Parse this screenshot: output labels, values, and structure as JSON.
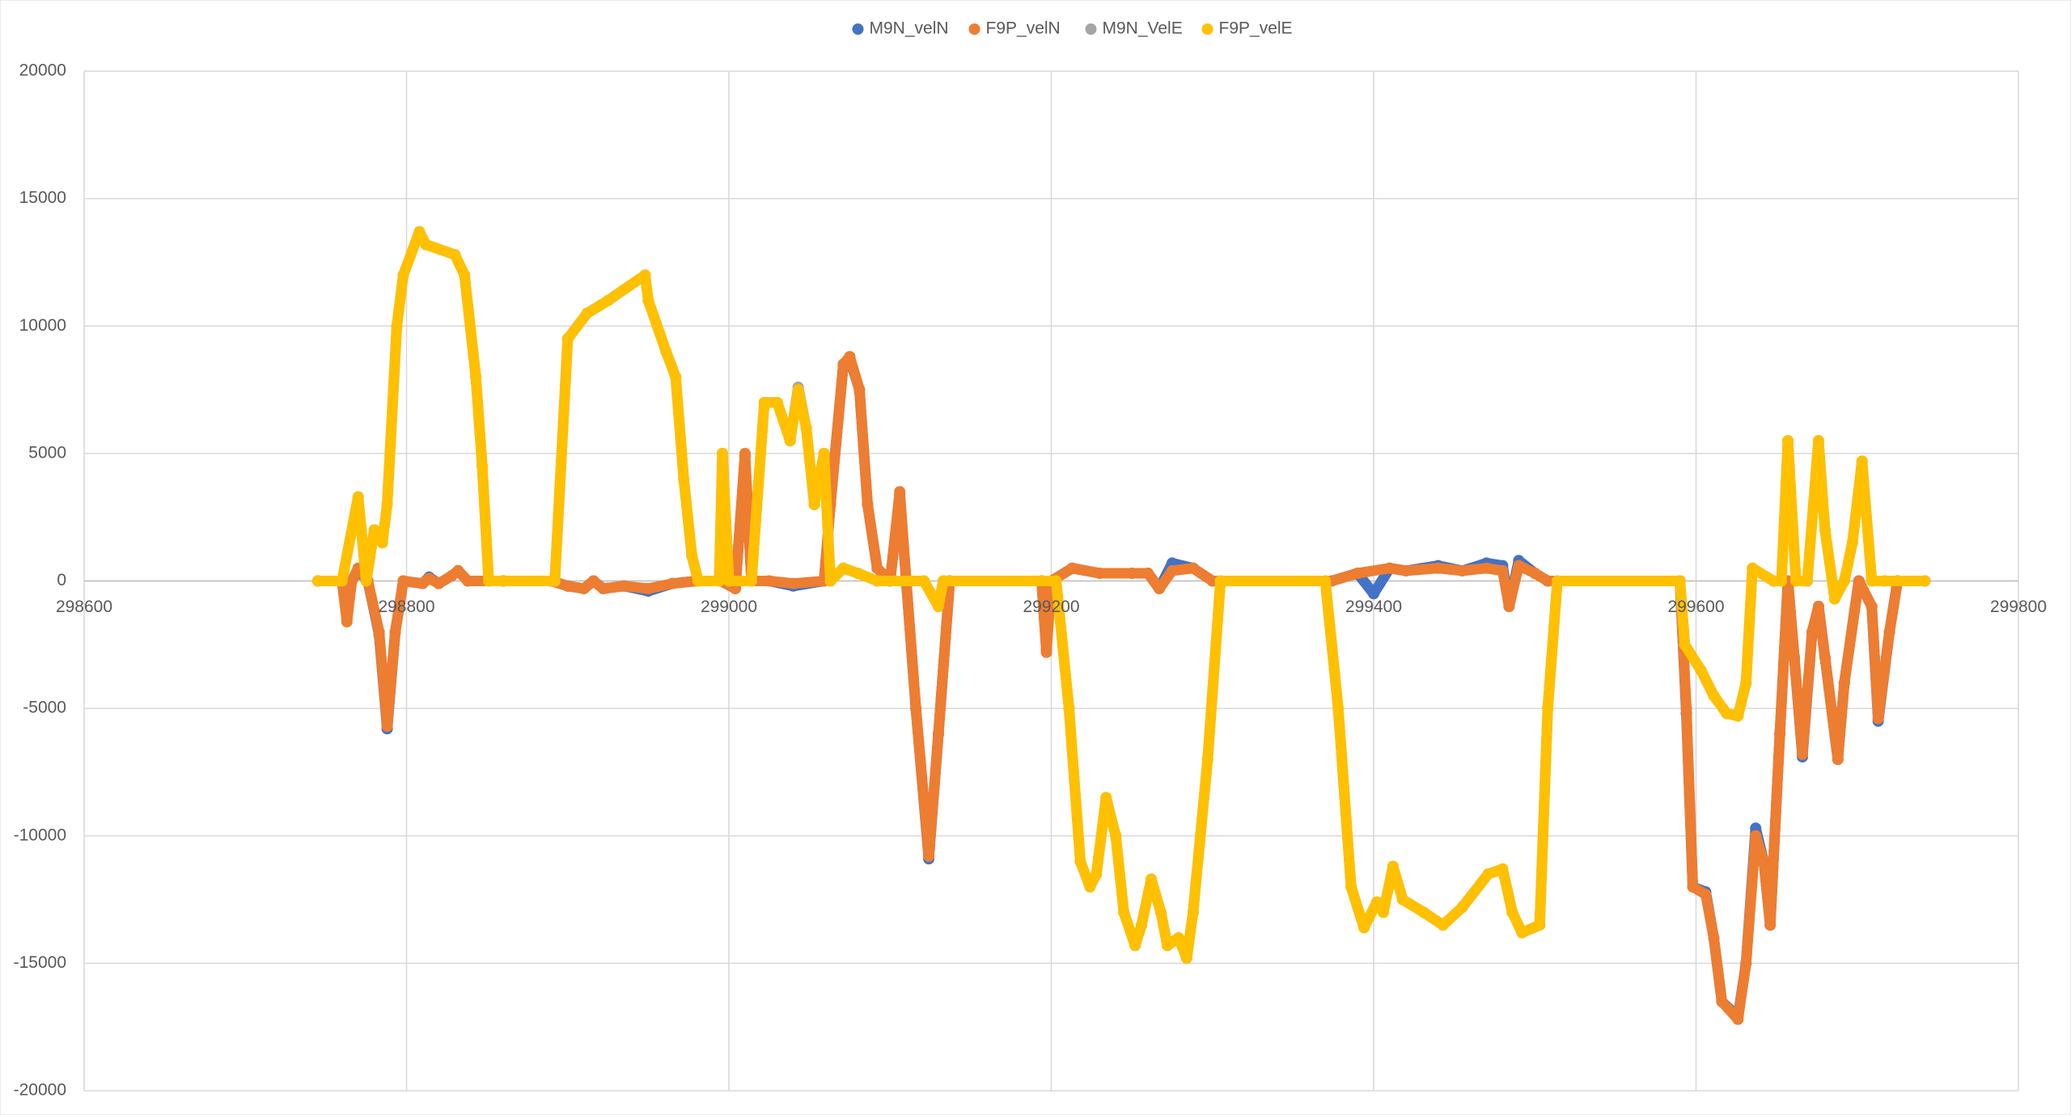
{
  "chart_data": {
    "type": "scatter",
    "xlim": [
      298600,
      299800
    ],
    "ylim": [
      -20000,
      20000
    ],
    "xticks": [
      298600,
      298800,
      299000,
      299200,
      299400,
      299600,
      299800
    ],
    "yticks": [
      -20000,
      -15000,
      -10000,
      -5000,
      0,
      5000,
      10000,
      15000,
      20000
    ],
    "grid": true,
    "legend": "top",
    "series": [
      {
        "name": "M9N_velN",
        "color": "#4472c4",
        "x": [
          298745,
          298760,
          298763,
          298766,
          298770,
          298776,
          298783,
          298788,
          298793,
          298798,
          298810,
          298814,
          298820,
          298828,
          298832,
          298838,
          298860,
          298890,
          298900,
          298910,
          298916,
          298922,
          298935,
          298950,
          298965,
          298980,
          298995,
          299004,
          299010,
          299014,
          299025,
          299040,
          299059,
          299063,
          299071,
          299075,
          299081,
          299086,
          299092,
          299100,
          299106,
          299110,
          299116,
          299124,
          299130,
          299137,
          299194,
          299197,
          299200,
          299213,
          299230,
          299250,
          299260,
          299267,
          299275,
          299288,
          299300,
          299374,
          299390,
          299400,
          299410,
          299420,
          299440,
          299455,
          299470,
          299480,
          299484,
          299490,
          299500,
          299508,
          299590,
          299594,
          299598,
          299606,
          299611,
          299616,
          299626,
          299631,
          299637,
          299642,
          299646,
          299652,
          299657,
          299661,
          299666,
          299672,
          299676,
          299680,
          299688,
          299692,
          299701,
          299709,
          299713,
          299720,
          299725,
          299742
        ],
        "values": [
          0,
          0,
          -1500,
          0,
          400,
          0,
          -2100,
          -5800,
          -2000,
          0,
          -100,
          150,
          -100,
          200,
          400,
          0,
          0,
          0,
          -200,
          -300,
          0,
          -300,
          -200,
          -400,
          -100,
          0,
          0,
          -300,
          4900,
          0,
          0,
          -200,
          0,
          3000,
          8500,
          8700,
          7500,
          3000,
          500,
          0,
          3400,
          0,
          -5000,
          -10900,
          -6000,
          0,
          0,
          -2700,
          0,
          500,
          300,
          300,
          300,
          -300,
          700,
          500,
          0,
          0,
          300,
          -500,
          500,
          400,
          600,
          400,
          700,
          600,
          -1000,
          800,
          300,
          0,
          0,
          -5200,
          -12000,
          -12200,
          -14000,
          -16500,
          -17100,
          -15000,
          -9700,
          -11000,
          -13500,
          -6000,
          0,
          -3000,
          -6900,
          -2000,
          -1000,
          -3000,
          -7000,
          -4000,
          0,
          -1000,
          -5500,
          -2000,
          0,
          0
        ]
      },
      {
        "name": "F9P_velN",
        "color": "#ed7d31",
        "x": [
          298745,
          298760,
          298763,
          298766,
          298770,
          298776,
          298783,
          298788,
          298793,
          298798,
          298810,
          298814,
          298820,
          298828,
          298832,
          298838,
          298860,
          298890,
          298900,
          298910,
          298916,
          298922,
          298935,
          298950,
          298965,
          298980,
          298995,
          299004,
          299010,
          299014,
          299025,
          299040,
          299059,
          299063,
          299071,
          299075,
          299081,
          299086,
          299092,
          299100,
          299106,
          299110,
          299116,
          299124,
          299130,
          299137,
          299194,
          299197,
          299200,
          299213,
          299230,
          299250,
          299260,
          299267,
          299275,
          299288,
          299300,
          299374,
          299390,
          299410,
          299420,
          299440,
          299455,
          299470,
          299480,
          299484,
          299490,
          299500,
          299508,
          299590,
          299594,
          299598,
          299606,
          299611,
          299616,
          299626,
          299631,
          299637,
          299642,
          299646,
          299652,
          299657,
          299661,
          299666,
          299672,
          299676,
          299680,
          299688,
          299692,
          299701,
          299709,
          299713,
          299720,
          299725,
          299742
        ],
        "values": [
          0,
          0,
          -1600,
          0,
          500,
          0,
          -2000,
          -5700,
          -2000,
          0,
          -100,
          100,
          -100,
          200,
          400,
          0,
          0,
          0,
          -200,
          -300,
          0,
          -300,
          -200,
          -300,
          -100,
          0,
          0,
          -300,
          5000,
          0,
          0,
          -100,
          0,
          3000,
          8500,
          8800,
          7500,
          3000,
          500,
          0,
          3500,
          0,
          -5000,
          -10800,
          -6000,
          0,
          0,
          -2800,
          0,
          500,
          300,
          300,
          300,
          -300,
          400,
          500,
          0,
          0,
          300,
          500,
          400,
          500,
          400,
          500,
          400,
          -1000,
          600,
          300,
          0,
          0,
          -5000,
          -12000,
          -12300,
          -14000,
          -16500,
          -17200,
          -15000,
          -10000,
          -11000,
          -13500,
          -6000,
          0,
          -3000,
          -6800,
          -2000,
          -1000,
          -3000,
          -7000,
          -4000,
          0,
          -1000,
          -5400,
          -2000,
          0,
          0
        ]
      },
      {
        "name": "M9N_VelE",
        "color": "#a5a5a5",
        "x": [
          298745,
          298760,
          298770,
          298775,
          298780,
          298785,
          298788,
          298794,
          298798,
          298808,
          298812,
          298830,
          298836,
          298843,
          298847,
          298851,
          298892,
          298900,
          298912,
          298925,
          298948,
          298950,
          298961,
          298967,
          298972,
          298977,
          298981,
          298994,
          298996,
          299000,
          299014,
          299022,
          299030,
          299038,
          299043,
          299048,
          299053,
          299059,
          299063,
          299071,
          299080,
          299092,
          299121,
          299130,
          299133,
          299203,
          299211,
          299218,
          299224,
          299228,
          299234,
          299240,
          299245,
          299252,
          299256,
          299262,
          299268,
          299272,
          299279,
          299284,
          299288,
          299297,
          299305,
          299370,
          299378,
          299386,
          299394,
          299402,
          299406,
          299412,
          299418,
          299431,
          299443,
          299455,
          299471,
          299480,
          299486,
          299492,
          299503,
          299508,
          299514,
          299590,
          299593,
          299603,
          299611,
          299619,
          299626,
          299631,
          299635,
          299648,
          299653,
          299657,
          299662,
          299669,
          299676,
          299680,
          299686,
          299692,
          299697,
          299703,
          299709,
          299717,
          299742
        ],
        "values": [
          0,
          0,
          3300,
          0,
          2000,
          1500,
          3000,
          10000,
          12000,
          13700,
          13200,
          12800,
          12000,
          8000,
          4500,
          0,
          0,
          9500,
          10500,
          11000,
          12000,
          11000,
          9000,
          8000,
          4000,
          1000,
          0,
          0,
          5000,
          0,
          0,
          7000,
          7000,
          5500,
          7600,
          6000,
          3000,
          5000,
          0,
          500,
          300,
          0,
          0,
          -1000,
          0,
          0,
          -5000,
          -11000,
          -12000,
          -11500,
          -8500,
          -10000,
          -13000,
          -14300,
          -13500,
          -11700,
          -13000,
          -14300,
          -14000,
          -14800,
          -13000,
          -7000,
          0,
          0,
          -5000,
          -12000,
          -13600,
          -12600,
          -13000,
          -11200,
          -12500,
          -13000,
          -13500,
          -12800,
          -11500,
          -11300,
          -13000,
          -13800,
          -13500,
          -5000,
          0,
          0,
          -2500,
          -3500,
          -4500,
          -5200,
          -5300,
          -4000,
          500,
          0,
          0,
          5500,
          0,
          0,
          5500,
          2000,
          -700,
          0,
          1500,
          4700,
          0,
          0,
          0
        ]
      },
      {
        "name": "F9P_velE",
        "color": "#ffc000",
        "x": [
          298745,
          298760,
          298770,
          298775,
          298780,
          298785,
          298788,
          298794,
          298798,
          298808,
          298812,
          298830,
          298836,
          298843,
          298847,
          298851,
          298892,
          298900,
          298912,
          298925,
          298948,
          298950,
          298961,
          298967,
          298972,
          298977,
          298981,
          298994,
          298996,
          299000,
          299014,
          299022,
          299030,
          299038,
          299043,
          299048,
          299053,
          299059,
          299063,
          299071,
          299080,
          299092,
          299121,
          299130,
          299133,
          299203,
          299211,
          299218,
          299224,
          299228,
          299234,
          299240,
          299245,
          299252,
          299256,
          299262,
          299268,
          299272,
          299279,
          299284,
          299288,
          299297,
          299305,
          299370,
          299378,
          299386,
          299394,
          299402,
          299406,
          299412,
          299418,
          299431,
          299443,
          299455,
          299471,
          299480,
          299486,
          299492,
          299503,
          299508,
          299514,
          299590,
          299593,
          299603,
          299611,
          299619,
          299626,
          299631,
          299635,
          299648,
          299653,
          299657,
          299662,
          299669,
          299676,
          299680,
          299686,
          299692,
          299697,
          299703,
          299709,
          299717,
          299742
        ],
        "values": [
          0,
          0,
          3300,
          0,
          2000,
          1500,
          3000,
          10000,
          12000,
          13700,
          13200,
          12800,
          12000,
          8000,
          4500,
          0,
          0,
          9500,
          10500,
          11000,
          12000,
          11000,
          9000,
          8000,
          4000,
          1000,
          0,
          0,
          5000,
          0,
          0,
          7000,
          7000,
          5500,
          7500,
          6000,
          3000,
          5000,
          0,
          500,
          300,
          0,
          0,
          -1000,
          0,
          0,
          -5000,
          -11000,
          -12000,
          -11500,
          -8500,
          -10000,
          -13000,
          -14300,
          -13500,
          -11700,
          -13000,
          -14300,
          -14000,
          -14800,
          -13000,
          -7000,
          0,
          0,
          -5000,
          -12000,
          -13600,
          -12600,
          -13000,
          -11200,
          -12500,
          -13000,
          -13500,
          -12800,
          -11500,
          -11300,
          -13000,
          -13800,
          -13500,
          -5000,
          0,
          0,
          -2500,
          -3500,
          -4500,
          -5200,
          -5300,
          -4000,
          500,
          0,
          0,
          5500,
          0,
          0,
          5500,
          2000,
          -700,
          0,
          1500,
          4700,
          0,
          0,
          0
        ]
      }
    ]
  }
}
